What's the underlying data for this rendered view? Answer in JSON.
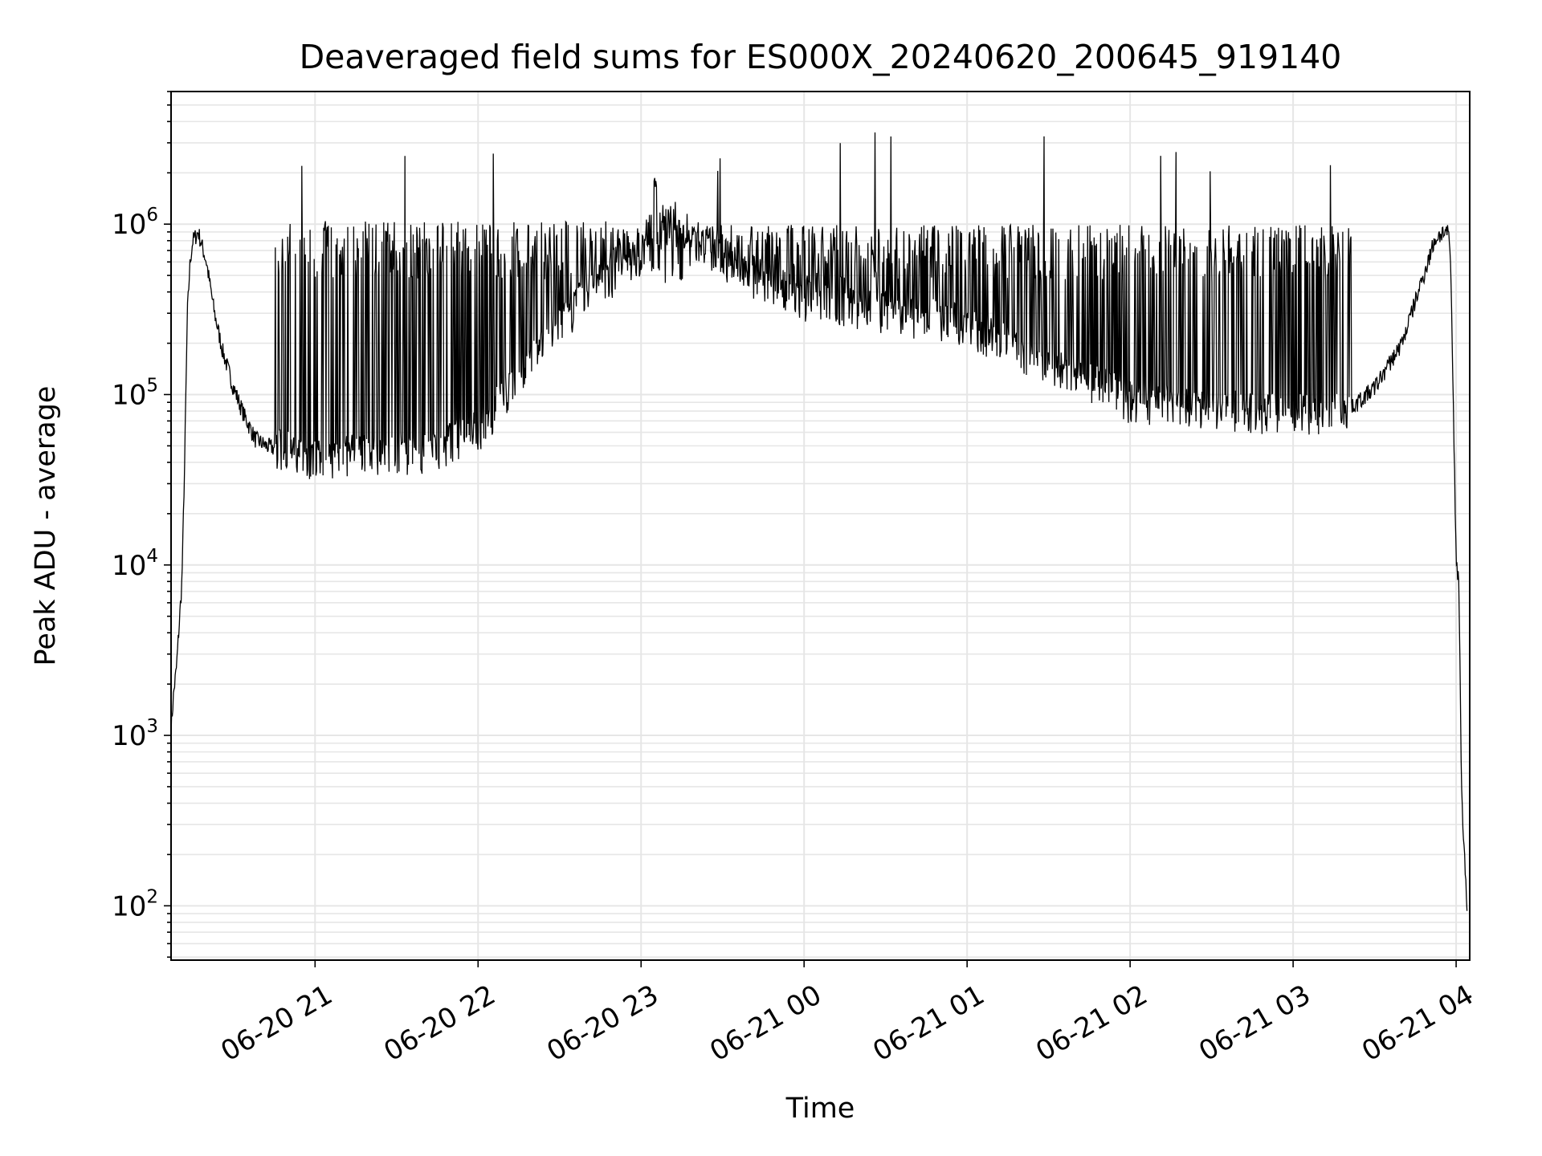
{
  "chart_data": {
    "type": "line",
    "title": "Deaveraged field sums for ES000X_20240620_200645_919140",
    "xlabel": "Time",
    "ylabel": "Peak ADU - average",
    "yscale": "log",
    "ylim": [
      48,
      6000000
    ],
    "xlim": [
      "2024-06-20T20:07",
      "2024-06-21T04:05"
    ],
    "grid": true,
    "line_color": "#000000",
    "grid_color": "#e6e6e6",
    "x_ticks": [
      {
        "value": "2024-06-20T21:00",
        "label": "06-20 21"
      },
      {
        "value": "2024-06-20T22:00",
        "label": "06-20 22"
      },
      {
        "value": "2024-06-20T23:00",
        "label": "06-20 23"
      },
      {
        "value": "2024-06-21T00:00",
        "label": "06-21 00"
      },
      {
        "value": "2024-06-21T01:00",
        "label": "06-21 01"
      },
      {
        "value": "2024-06-21T02:00",
        "label": "06-21 02"
      },
      {
        "value": "2024-06-21T03:00",
        "label": "06-21 03"
      },
      {
        "value": "2024-06-21T04:00",
        "label": "06-21 04"
      }
    ],
    "y_ticks": [
      {
        "value": 100,
        "base": "10",
        "exp": "2"
      },
      {
        "value": 1000,
        "base": "10",
        "exp": "3"
      },
      {
        "value": 10000,
        "base": "10",
        "exp": "4"
      },
      {
        "value": 100000,
        "base": "10",
        "exp": "5"
      },
      {
        "value": 1000000,
        "base": "10",
        "exp": "6"
      }
    ],
    "series": [
      {
        "x": [
          "2024-06-20T20:07",
          "2024-06-20T20:08",
          "2024-06-20T20:09",
          "2024-06-20T20:10",
          "2024-06-20T20:11",
          "2024-06-20T20:12",
          "2024-06-20T20:13",
          "2024-06-20T20:14",
          "2024-06-20T20:15",
          "2024-06-20T20:17",
          "2024-06-20T20:20",
          "2024-06-20T20:23",
          "2024-06-20T20:26",
          "2024-06-20T20:30",
          "2024-06-20T20:34",
          "2024-06-20T20:38",
          "2024-06-20T20:42",
          "2024-06-20T20:46",
          "2024-06-20T20:50",
          "2024-06-20T20:55",
          "2024-06-20T21:00",
          "2024-06-20T21:20",
          "2024-06-20T21:40",
          "2024-06-20T22:00",
          "2024-06-20T22:20",
          "2024-06-20T22:40",
          "2024-06-20T23:00",
          "2024-06-20T23:05",
          "2024-06-20T23:10",
          "2024-06-20T23:20",
          "2024-06-20T23:40",
          "2024-06-21T00:00",
          "2024-06-21T00:30",
          "2024-06-21T01:00",
          "2024-06-21T01:30",
          "2024-06-21T02:00",
          "2024-06-21T02:30",
          "2024-06-21T03:00",
          "2024-06-21T03:10",
          "2024-06-21T03:20",
          "2024-06-21T03:30",
          "2024-06-21T03:40",
          "2024-06-21T03:48",
          "2024-06-21T03:52",
          "2024-06-21T03:55",
          "2024-06-21T03:57",
          "2024-06-21T03:58",
          "2024-06-21T04:00",
          "2024-06-21T04:01",
          "2024-06-21T04:02",
          "2024-06-21T04:03",
          "2024-06-21T04:04"
        ],
        "y": [
          1100,
          1800,
          2500,
          4500,
          8000,
          40000,
          300000,
          600000,
          800000,
          900000,
          600000,
          300000,
          180000,
          110000,
          75000,
          55000,
          50000,
          48000,
          45000,
          42000,
          40000,
          45000,
          45000,
          60000,
          150000,
          400000,
          600000,
          1400000,
          1100000,
          800000,
          500000,
          350000,
          300000,
          250000,
          150000,
          90000,
          80000,
          75000,
          75000,
          80000,
          110000,
          200000,
          500000,
          800000,
          900000,
          900000,
          600000,
          11000,
          8000,
          500,
          200,
          100
        ]
      }
    ]
  }
}
